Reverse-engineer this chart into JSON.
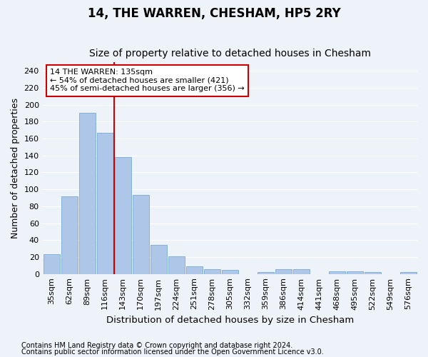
{
  "title": "14, THE WARREN, CHESHAM, HP5 2RY",
  "subtitle": "Size of property relative to detached houses in Chesham",
  "xlabel": "Distribution of detached houses by size in Chesham",
  "ylabel": "Number of detached properties",
  "bar_labels": [
    "35sqm",
    "62sqm",
    "89sqm",
    "116sqm",
    "143sqm",
    "170sqm",
    "197sqm",
    "224sqm",
    "251sqm",
    "278sqm",
    "305sqm",
    "332sqm",
    "359sqm",
    "386sqm",
    "414sqm",
    "441sqm",
    "468sqm",
    "495sqm",
    "522sqm",
    "549sqm",
    "576sqm"
  ],
  "bar_values": [
    23,
    92,
    190,
    167,
    138,
    93,
    34,
    21,
    9,
    6,
    5,
    0,
    2,
    6,
    6,
    0,
    3,
    3,
    2,
    0,
    2
  ],
  "bar_color": "#aec6e8",
  "bar_edgecolor": "#7aaad4",
  "vline_x": 3.5,
  "vline_color": "#cc0000",
  "ylim": [
    0,
    250
  ],
  "yticks": [
    0,
    20,
    40,
    60,
    80,
    100,
    120,
    140,
    160,
    180,
    200,
    220,
    240
  ],
  "annotation_text": "14 THE WARREN: 135sqm\n← 54% of detached houses are smaller (421)\n45% of semi-detached houses are larger (356) →",
  "annotation_box_color": "#cc0000",
  "footnote1": "Contains HM Land Registry data © Crown copyright and database right 2024.",
  "footnote2": "Contains public sector information licensed under the Open Government Licence v3.0.",
  "background_color": "#eef2f9",
  "grid_color": "#ffffff",
  "title_fontsize": 12,
  "subtitle_fontsize": 10,
  "ylabel_fontsize": 9,
  "xlabel_fontsize": 9.5,
  "tick_fontsize": 8,
  "annotation_fontsize": 8,
  "footnote_fontsize": 7
}
